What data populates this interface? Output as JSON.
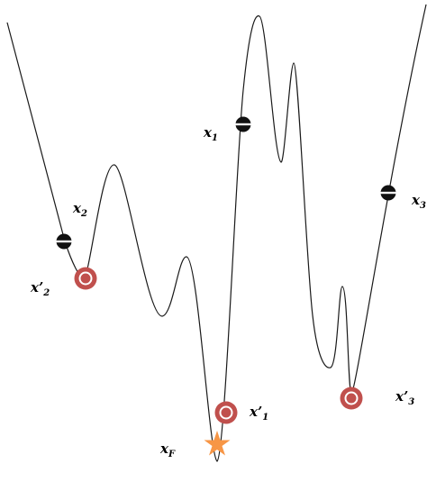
{
  "colors": {
    "curve": "#1a1a1a",
    "ball_fill": "#111111",
    "ball_band": "#f2f2f2",
    "ring": "#c0504d",
    "star": "#f79646",
    "label": "#000000"
  },
  "labels": {
    "x1": {
      "base": "x",
      "prime": "",
      "sub": "1"
    },
    "x2": {
      "base": "x",
      "prime": "",
      "sub": "2"
    },
    "x3": {
      "base": "x",
      "prime": "",
      "sub": "3"
    },
    "x1p": {
      "base": "x",
      "prime": "’",
      "sub": "1"
    },
    "x2p": {
      "base": "x",
      "prime": "’",
      "sub": "2"
    },
    "x3p": {
      "base": "x",
      "prime": "’",
      "sub": "3"
    },
    "xF": {
      "base": "x",
      "prime": "",
      "sub": "F"
    }
  },
  "icons": {
    "ball": "black-ball-icon",
    "local_min": "red-ring-icon",
    "global_min": "orange-star-icon"
  }
}
